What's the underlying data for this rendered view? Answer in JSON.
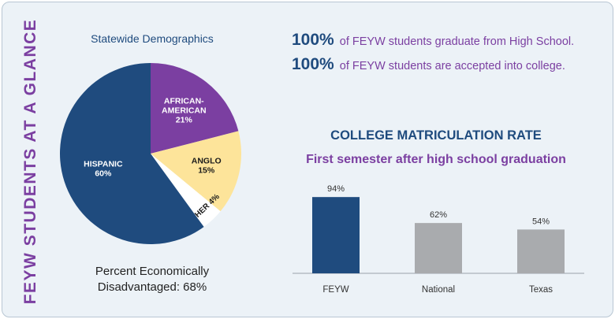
{
  "side_title": "FEYW STUDENTS AT A GLANCE",
  "pie_title": "Statewide Demographics",
  "pie_note_line1": "Percent Economically",
  "pie_note_line2": "Disadvantaged: 68%",
  "stats": [
    {
      "value": "100%",
      "text": "of FEYW students graduate from High School."
    },
    {
      "value": "100%",
      "text": "of FEYW students are accepted into college."
    }
  ],
  "bar_title": "COLLEGE MATRICULATION RATE",
  "bar_subtitle": "First semester after high school graduation",
  "colors": {
    "navy": "#1f4b7e",
    "purple": "#7b3fa1",
    "yellow": "#fde49a",
    "white": "#ffffff",
    "gray": "#a9abae"
  },
  "chart_data": [
    {
      "type": "pie",
      "title": "Statewide Demographics",
      "slices": [
        {
          "label": "AFRICAN-AMERICAN",
          "value": 21,
          "value_label": "21%",
          "color": "#7b3fa1"
        },
        {
          "label": "ANGLO",
          "value": 15,
          "value_label": "15%",
          "color": "#fde49a"
        },
        {
          "label": "OTHER",
          "value": 4,
          "value_label": "4%",
          "color": "#ffffff"
        },
        {
          "label": "HISPANIC",
          "value": 60,
          "value_label": "60%",
          "color": "#1f4b7e"
        }
      ]
    },
    {
      "type": "bar",
      "title": "COLLEGE MATRICULATION RATE",
      "subtitle": "First semester after high school graduation",
      "categories": [
        "FEYW",
        "National",
        "Texas"
      ],
      "values": [
        94,
        62,
        54
      ],
      "value_labels": [
        "94%",
        "62%",
        "54%"
      ],
      "colors": [
        "#1f4b7e",
        "#a9abae",
        "#a9abae"
      ],
      "ylim": [
        0,
        100
      ],
      "grid": false
    }
  ]
}
